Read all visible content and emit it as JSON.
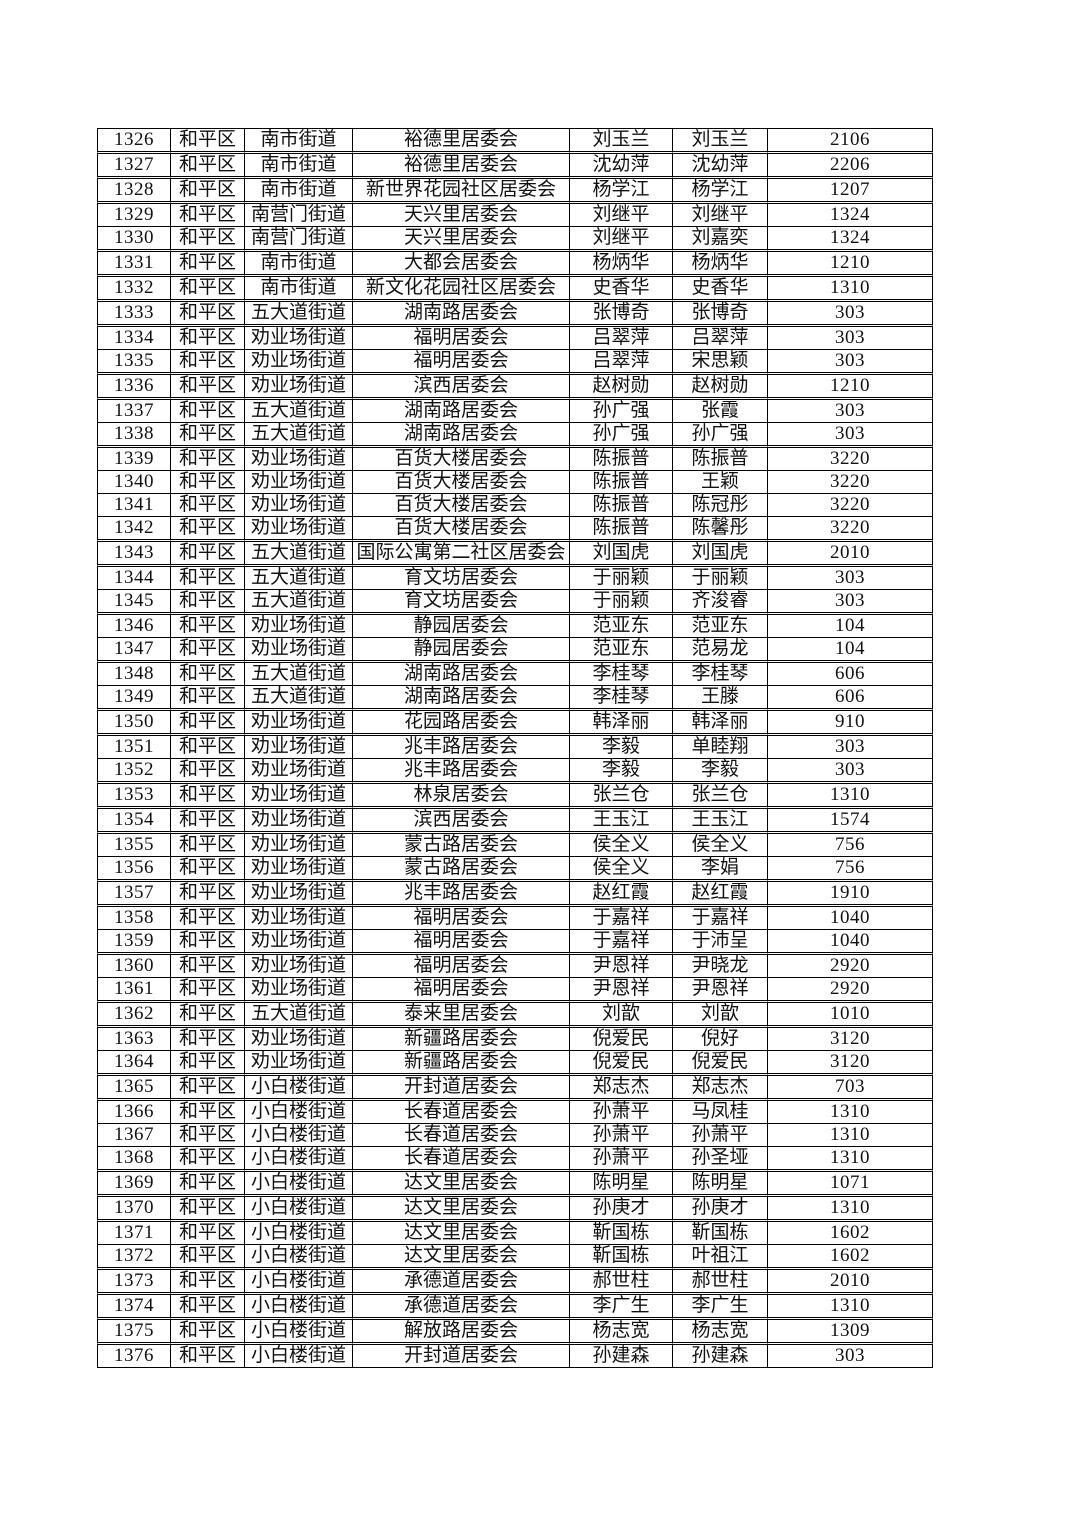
{
  "colors": {
    "border": "#000000",
    "text": "#111111",
    "background": "#ffffff"
  },
  "table": {
    "rows": [
      [
        "1326",
        "和平区",
        "南市街道",
        "裕德里居委会",
        "刘玉兰",
        "刘玉兰",
        "2106"
      ],
      [
        "1327",
        "和平区",
        "南市街道",
        "裕德里居委会",
        "沈幼萍",
        "沈幼萍",
        "2206"
      ],
      [
        "1328",
        "和平区",
        "南市街道",
        "新世界花园社区居委会",
        "杨学江",
        "杨学江",
        "1207"
      ],
      [
        "1329",
        "和平区",
        "南营门街道",
        "天兴里居委会",
        "刘继平",
        "刘继平",
        "1324"
      ],
      [
        "1330",
        "和平区",
        "南营门街道",
        "天兴里居委会",
        "刘继平",
        "刘嘉奕",
        "1324"
      ],
      [
        "1331",
        "和平区",
        "南市街道",
        "大都会居委会",
        "杨炳华",
        "杨炳华",
        "1210"
      ],
      [
        "1332",
        "和平区",
        "南市街道",
        "新文化花园社区居委会",
        "史香华",
        "史香华",
        "1310"
      ],
      [
        "1333",
        "和平区",
        "五大道街道",
        "湖南路居委会",
        "张博奇",
        "张博奇",
        "303"
      ],
      [
        "1334",
        "和平区",
        "劝业场街道",
        "福明居委会",
        "吕翠萍",
        "吕翠萍",
        "303"
      ],
      [
        "1335",
        "和平区",
        "劝业场街道",
        "福明居委会",
        "吕翠萍",
        "宋思颖",
        "303"
      ],
      [
        "1336",
        "和平区",
        "劝业场街道",
        "滨西居委会",
        "赵树勋",
        "赵树勋",
        "1210"
      ],
      [
        "1337",
        "和平区",
        "五大道街道",
        "湖南路居委会",
        "孙广强",
        "张霞",
        "303"
      ],
      [
        "1338",
        "和平区",
        "五大道街道",
        "湖南路居委会",
        "孙广强",
        "孙广强",
        "303"
      ],
      [
        "1339",
        "和平区",
        "劝业场街道",
        "百货大楼居委会",
        "陈振普",
        "陈振普",
        "3220"
      ],
      [
        "1340",
        "和平区",
        "劝业场街道",
        "百货大楼居委会",
        "陈振普",
        "王颖",
        "3220"
      ],
      [
        "1341",
        "和平区",
        "劝业场街道",
        "百货大楼居委会",
        "陈振普",
        "陈冠彤",
        "3220"
      ],
      [
        "1342",
        "和平区",
        "劝业场街道",
        "百货大楼居委会",
        "陈振普",
        "陈馨彤",
        "3220"
      ],
      [
        "1343",
        "和平区",
        "五大道街道",
        "国际公寓第二社区居委会",
        "刘国虎",
        "刘国虎",
        "2010"
      ],
      [
        "1344",
        "和平区",
        "五大道街道",
        "育文坊居委会",
        "于丽颖",
        "于丽颖",
        "303"
      ],
      [
        "1345",
        "和平区",
        "五大道街道",
        "育文坊居委会",
        "于丽颖",
        "齐浚睿",
        "303"
      ],
      [
        "1346",
        "和平区",
        "劝业场街道",
        "静园居委会",
        "范亚东",
        "范亚东",
        "104"
      ],
      [
        "1347",
        "和平区",
        "劝业场街道",
        "静园居委会",
        "范亚东",
        "范易龙",
        "104"
      ],
      [
        "1348",
        "和平区",
        "五大道街道",
        "湖南路居委会",
        "李桂琴",
        "李桂琴",
        "606"
      ],
      [
        "1349",
        "和平区",
        "五大道街道",
        "湖南路居委会",
        "李桂琴",
        "王滕",
        "606"
      ],
      [
        "1350",
        "和平区",
        "劝业场街道",
        "花园路居委会",
        "韩泽丽",
        "韩泽丽",
        "910"
      ],
      [
        "1351",
        "和平区",
        "劝业场街道",
        "兆丰路居委会",
        "李毅",
        "单睦翔",
        "303"
      ],
      [
        "1352",
        "和平区",
        "劝业场街道",
        "兆丰路居委会",
        "李毅",
        "李毅",
        "303"
      ],
      [
        "1353",
        "和平区",
        "劝业场街道",
        "林泉居委会",
        "张兰仓",
        "张兰仓",
        "1310"
      ],
      [
        "1354",
        "和平区",
        "劝业场街道",
        "滨西居委会",
        "王玉江",
        "王玉江",
        "1574"
      ],
      [
        "1355",
        "和平区",
        "劝业场街道",
        "蒙古路居委会",
        "侯全义",
        "侯全义",
        "756"
      ],
      [
        "1356",
        "和平区",
        "劝业场街道",
        "蒙古路居委会",
        "侯全义",
        "李娟",
        "756"
      ],
      [
        "1357",
        "和平区",
        "劝业场街道",
        "兆丰路居委会",
        "赵红霞",
        "赵红霞",
        "1910"
      ],
      [
        "1358",
        "和平区",
        "劝业场街道",
        "福明居委会",
        "于嘉祥",
        "于嘉祥",
        "1040"
      ],
      [
        "1359",
        "和平区",
        "劝业场街道",
        "福明居委会",
        "于嘉祥",
        "于沛呈",
        "1040"
      ],
      [
        "1360",
        "和平区",
        "劝业场街道",
        "福明居委会",
        "尹恩祥",
        "尹晓龙",
        "2920"
      ],
      [
        "1361",
        "和平区",
        "劝业场街道",
        "福明居委会",
        "尹恩祥",
        "尹恩祥",
        "2920"
      ],
      [
        "1362",
        "和平区",
        "五大道街道",
        "泰来里居委会",
        "刘歆",
        "刘歆",
        "1010"
      ],
      [
        "1363",
        "和平区",
        "劝业场街道",
        "新疆路居委会",
        "倪爱民",
        "倪好",
        "3120"
      ],
      [
        "1364",
        "和平区",
        "劝业场街道",
        "新疆路居委会",
        "倪爱民",
        "倪爱民",
        "3120"
      ],
      [
        "1365",
        "和平区",
        "小白楼街道",
        "开封道居委会",
        "郑志杰",
        "郑志杰",
        "703"
      ],
      [
        "1366",
        "和平区",
        "小白楼街道",
        "长春道居委会",
        "孙萧平",
        "马凤桂",
        "1310"
      ],
      [
        "1367",
        "和平区",
        "小白楼街道",
        "长春道居委会",
        "孙萧平",
        "孙萧平",
        "1310"
      ],
      [
        "1368",
        "和平区",
        "小白楼街道",
        "长春道居委会",
        "孙萧平",
        "孙圣垭",
        "1310"
      ],
      [
        "1369",
        "和平区",
        "小白楼街道",
        "达文里居委会",
        "陈明星",
        "陈明星",
        "1071"
      ],
      [
        "1370",
        "和平区",
        "小白楼街道",
        "达文里居委会",
        "孙庚才",
        "孙庚才",
        "1310"
      ],
      [
        "1371",
        "和平区",
        "小白楼街道",
        "达文里居委会",
        "靳国栋",
        "靳国栋",
        "1602"
      ],
      [
        "1372",
        "和平区",
        "小白楼街道",
        "达文里居委会",
        "靳国栋",
        "叶祖江",
        "1602"
      ],
      [
        "1373",
        "和平区",
        "小白楼街道",
        "承德道居委会",
        "郝世柱",
        "郝世柱",
        "2010"
      ],
      [
        "1374",
        "和平区",
        "小白楼街道",
        "承德道居委会",
        "李广生",
        "李广生",
        "1310"
      ],
      [
        "1375",
        "和平区",
        "小白楼街道",
        "解放路居委会",
        "杨志宽",
        "杨志宽",
        "1309"
      ],
      [
        "1376",
        "和平区",
        "小白楼街道",
        "开封道居委会",
        "孙建森",
        "孙建森",
        "303"
      ]
    ]
  }
}
